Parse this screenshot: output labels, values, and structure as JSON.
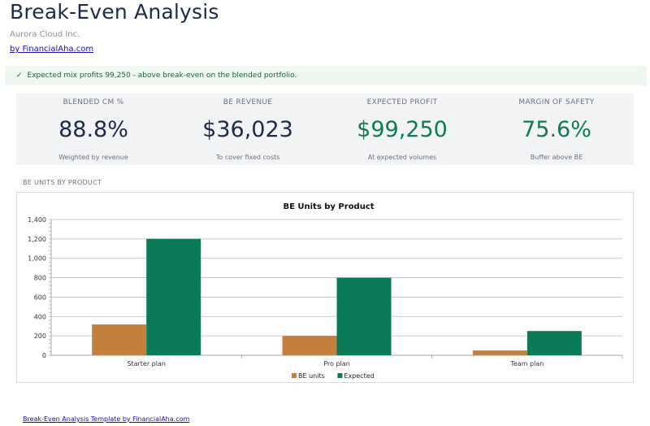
{
  "header": {
    "title": "Break-Even Analysis",
    "company": "Aurora Cloud Inc.",
    "byline": "by FinancialAha.com"
  },
  "banner": {
    "icon": "check-icon",
    "check": "✓",
    "message": "Expected mix profits 99,250 - above break-even on the blended portfolio."
  },
  "kpis": [
    {
      "label": "BLENDED CM %",
      "value": "88.8%",
      "sub": "Weighted by revenue",
      "color": "#1e2a4a"
    },
    {
      "label": "BE REVENUE",
      "value": "$36,023",
      "sub": "To cover fixed costs",
      "color": "#1e2a4a"
    },
    {
      "label": "EXPECTED PROFIT",
      "value": "$99,250",
      "sub": "At expected volumes",
      "color": "#0f7a58"
    },
    {
      "label": "MARGIN OF SAFETY",
      "value": "75.6%",
      "sub": "Buffer above BE",
      "color": "#0f7a58"
    }
  ],
  "section": {
    "label": "BE UNITS BY PRODUCT"
  },
  "chart_data": {
    "type": "bar",
    "title": "BE Units by Product",
    "categories": [
      "Starter plan",
      "Pro plan",
      "Team plan"
    ],
    "series": [
      {
        "name": "BE units",
        "color": "#c47f3c",
        "values": [
          318,
          200,
          50
        ]
      },
      {
        "name": "Expected",
        "color": "#0a7a58",
        "values": [
          1200,
          800,
          250
        ]
      }
    ],
    "ylim": [
      0,
      1400
    ],
    "yticks": [
      0,
      200,
      400,
      600,
      800,
      1000,
      1200,
      1400
    ],
    "ytick_labels": [
      "0",
      "200",
      "400",
      "600",
      "800",
      "1,000",
      "1,200",
      "1,400"
    ],
    "grid": true,
    "legend": "bottom"
  },
  "footer": {
    "link": "Break-Even Analysis Template by FinancialAha.com"
  }
}
